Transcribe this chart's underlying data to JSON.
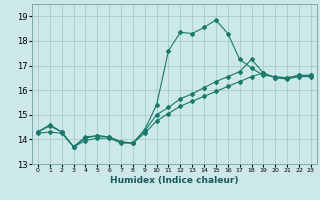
{
  "title": "",
  "xlabel": "Humidex (Indice chaleur)",
  "bg_color": "#cce8e8",
  "grid_color": "#aacfcf",
  "line_color": "#1a7a6a",
  "xlim": [
    -0.5,
    23.5
  ],
  "ylim": [
    13.0,
    19.5
  ],
  "yticks": [
    13,
    14,
    15,
    16,
    17,
    18,
    19
  ],
  "xticks": [
    0,
    1,
    2,
    3,
    4,
    5,
    6,
    7,
    8,
    9,
    10,
    11,
    12,
    13,
    14,
    15,
    16,
    17,
    18,
    19,
    20,
    21,
    22,
    23
  ],
  "line1_x": [
    0,
    1,
    2,
    3,
    4,
    5,
    6,
    7,
    8,
    9,
    10,
    11,
    12,
    13,
    14,
    15,
    16,
    17,
    18,
    19,
    20,
    21,
    22,
    23
  ],
  "line1_y": [
    14.3,
    14.6,
    14.3,
    13.7,
    14.1,
    14.15,
    14.1,
    13.9,
    13.85,
    14.4,
    15.4,
    17.6,
    18.35,
    18.3,
    18.55,
    18.85,
    18.3,
    17.25,
    16.9,
    16.6,
    16.55,
    16.5,
    16.6,
    16.6
  ],
  "line2_x": [
    0,
    1,
    2,
    3,
    4,
    5,
    6,
    7,
    8,
    9,
    10,
    11,
    12,
    13,
    14,
    15,
    16,
    17,
    18,
    19,
    20,
    21,
    22,
    23
  ],
  "line2_y": [
    14.3,
    14.55,
    14.3,
    13.7,
    14.05,
    14.15,
    14.1,
    13.9,
    13.85,
    14.35,
    15.0,
    15.3,
    15.65,
    15.85,
    16.1,
    16.35,
    16.55,
    16.75,
    17.25,
    16.7,
    16.5,
    16.5,
    16.6,
    16.6
  ],
  "line3_x": [
    0,
    1,
    2,
    3,
    4,
    5,
    6,
    7,
    8,
    9,
    10,
    11,
    12,
    13,
    14,
    15,
    16,
    17,
    18,
    19,
    20,
    21,
    22,
    23
  ],
  "line3_y": [
    14.25,
    14.3,
    14.25,
    13.7,
    13.95,
    14.05,
    14.05,
    13.85,
    13.85,
    14.25,
    14.75,
    15.05,
    15.35,
    15.55,
    15.75,
    15.95,
    16.15,
    16.35,
    16.55,
    16.7,
    16.5,
    16.45,
    16.55,
    16.55
  ]
}
